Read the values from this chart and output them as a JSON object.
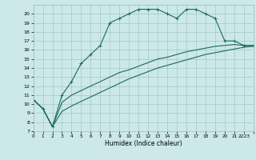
{
  "bg_color": "#cce8e8",
  "grid_color": "#9abfbf",
  "line_color": "#1a6b5a",
  "line1_x": [
    0,
    1,
    2,
    3,
    4,
    5,
    6,
    7,
    8,
    9,
    10,
    11,
    12,
    13,
    14,
    15,
    16,
    17,
    18,
    19,
    20,
    21,
    22,
    23
  ],
  "line1_y": [
    10.5,
    9.5,
    7.5,
    11.0,
    12.5,
    14.5,
    15.5,
    16.5,
    19.0,
    19.5,
    20.0,
    20.5,
    20.5,
    20.5,
    20.0,
    19.5,
    20.5,
    20.5,
    20.0,
    19.5,
    17.0,
    17.0,
    16.5,
    16.5
  ],
  "line2_x": [
    0,
    1,
    2,
    3,
    4,
    5,
    6,
    7,
    8,
    9,
    10,
    11,
    12,
    13,
    14,
    15,
    16,
    17,
    18,
    19,
    20,
    21,
    22,
    23
  ],
  "line2_y": [
    10.5,
    9.5,
    7.5,
    10.2,
    11.0,
    11.5,
    12.0,
    12.5,
    13.0,
    13.5,
    13.8,
    14.2,
    14.6,
    15.0,
    15.2,
    15.5,
    15.8,
    16.0,
    16.2,
    16.4,
    16.5,
    16.6,
    16.5,
    16.5
  ],
  "line3_x": [
    0,
    1,
    2,
    3,
    4,
    5,
    6,
    7,
    8,
    9,
    10,
    11,
    12,
    13,
    14,
    15,
    16,
    17,
    18,
    19,
    20,
    21,
    22,
    23
  ],
  "line3_y": [
    10.5,
    9.5,
    7.5,
    9.2,
    9.8,
    10.3,
    10.8,
    11.3,
    11.8,
    12.3,
    12.8,
    13.2,
    13.6,
    14.0,
    14.3,
    14.6,
    14.9,
    15.2,
    15.5,
    15.7,
    15.9,
    16.1,
    16.3,
    16.4
  ],
  "xlabel": "Humidex (Indice chaleur)",
  "ylim": [
    7,
    21
  ],
  "xlim": [
    0,
    23
  ],
  "yticks": [
    7,
    8,
    9,
    10,
    11,
    12,
    13,
    14,
    15,
    16,
    17,
    18,
    19,
    20
  ],
  "xtick_labels": [
    "0",
    "1",
    "2",
    "3",
    "4",
    "5",
    "6",
    "7",
    "8",
    "9",
    "10",
    "11",
    "12",
    "13",
    "14",
    "15",
    "16",
    "17",
    "18",
    "19",
    "20",
    "21",
    "2223",
    ""
  ],
  "marker": "+",
  "markersize": 3,
  "linewidth": 0.8
}
